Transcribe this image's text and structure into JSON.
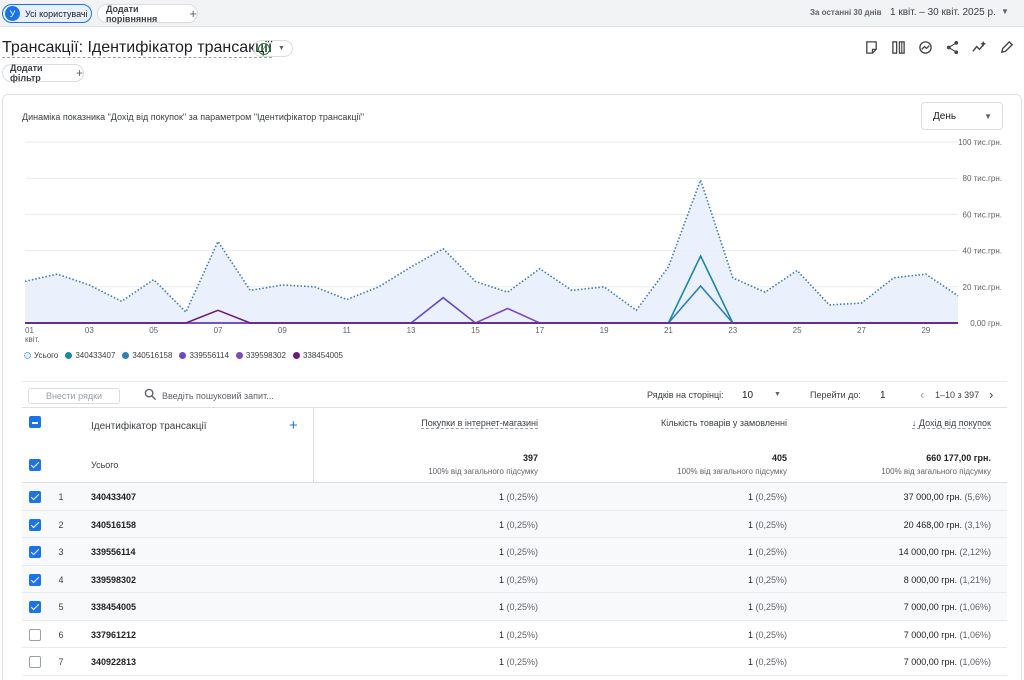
{
  "header": {
    "segment_avatar": "У",
    "segment_label": "Усі користувачі",
    "compare_label": "Додати порівняння",
    "date_hint": "За останні 30 днів",
    "date_range": "1 квіт. – 30 квіт. 2025 р."
  },
  "report": {
    "title": "Трансакції: Ідентифікатор трансакції",
    "filter_label": "Додати фільтр"
  },
  "chart_data": {
    "type": "line",
    "title": "Динаміка показника \"Дохід від покупок\" за параметром \"Ідентифікатор трансакції\"",
    "period": "День",
    "x_ticks": [
      "01",
      "03",
      "05",
      "07",
      "09",
      "11",
      "13",
      "15",
      "17",
      "19",
      "21",
      "23",
      "25",
      "27",
      "29"
    ],
    "x_month_label": "квіт.",
    "y_ticks": [
      "100 тис.грн.",
      "80 тис.грн.",
      "60 тис.грн.",
      "40 тис.грн.",
      "20 тис.грн.",
      "0,00 грн."
    ],
    "ylim": [
      0,
      100000
    ],
    "grid": true,
    "series": [
      {
        "name": "Усього",
        "color": "#1a73e8",
        "style": "dotted-area",
        "values": [
          23000,
          27000,
          21000,
          12000,
          24000,
          6000,
          45000,
          18000,
          21000,
          20000,
          13000,
          20000,
          31000,
          41000,
          23000,
          17000,
          30000,
          18000,
          20000,
          7000,
          31000,
          79000,
          25000,
          17000,
          29000,
          10000,
          11000,
          25000,
          27000,
          15000
        ]
      },
      {
        "name": "340433407",
        "color": "#1a8a9e",
        "style": "line",
        "values": [
          0,
          0,
          0,
          0,
          0,
          0,
          0,
          0,
          0,
          0,
          0,
          0,
          0,
          0,
          0,
          0,
          0,
          0,
          0,
          0,
          0,
          37000,
          0,
          0,
          0,
          0,
          0,
          0,
          0,
          0
        ]
      },
      {
        "name": "340516158",
        "color": "#2b7fbd",
        "style": "line",
        "values": [
          0,
          0,
          0,
          0,
          0,
          0,
          0,
          0,
          0,
          0,
          0,
          0,
          0,
          0,
          0,
          0,
          0,
          0,
          0,
          0,
          0,
          20468,
          0,
          0,
          0,
          0,
          0,
          0,
          0,
          0
        ]
      },
      {
        "name": "339556114",
        "color": "#6b48c8",
        "style": "line",
        "values": [
          0,
          0,
          0,
          0,
          0,
          0,
          0,
          0,
          0,
          0,
          0,
          0,
          0,
          14000,
          0,
          0,
          0,
          0,
          0,
          0,
          0,
          0,
          0,
          0,
          0,
          0,
          0,
          0,
          0,
          0
        ]
      },
      {
        "name": "339598302",
        "color": "#8047b8",
        "style": "line",
        "values": [
          0,
          0,
          0,
          0,
          0,
          0,
          0,
          0,
          0,
          0,
          0,
          0,
          0,
          0,
          0,
          8000,
          0,
          0,
          0,
          0,
          0,
          0,
          0,
          0,
          0,
          0,
          0,
          0,
          0,
          0
        ]
      },
      {
        "name": "338454005",
        "color": "#6a1b7a",
        "style": "line",
        "values": [
          0,
          0,
          0,
          0,
          0,
          0,
          7000,
          0,
          0,
          0,
          0,
          0,
          0,
          0,
          0,
          0,
          0,
          0,
          0,
          0,
          0,
          0,
          0,
          0,
          0,
          0,
          0,
          0,
          0,
          0
        ]
      }
    ]
  },
  "table_controls": {
    "add_rows": "Внести рядки",
    "search_placeholder": "Введіть пошуковий запит...",
    "rows_per_page_label": "Рядків на сторінці:",
    "rows_per_page": "10",
    "goto_label": "Перейти до:",
    "goto_value": "1",
    "pager": "1–10 з 397"
  },
  "table": {
    "dimension_header": "Ідентифікатор трансакції",
    "headers": [
      "Покупки в інтернет-магазині",
      "Кількість товарів у замовленні",
      "↓ Дохід від покупок"
    ],
    "total_label": "Усього",
    "totals": [
      {
        "value": "397",
        "sub": "100% від загального підсумку"
      },
      {
        "value": "405",
        "sub": "100% від загального підсумку"
      },
      {
        "value": "660 177,00 грн.",
        "sub": "100% від загального підсумку"
      }
    ],
    "rows": [
      {
        "idx": "1",
        "id": "340433407",
        "checked": true,
        "c1": "1",
        "p1": " (0,25%)",
        "c2": "1",
        "p2": " (0,25%)",
        "c3": "37 000,00 грн.",
        "p3": " (5,6%)"
      },
      {
        "idx": "2",
        "id": "340516158",
        "checked": true,
        "c1": "1",
        "p1": " (0,25%)",
        "c2": "1",
        "p2": " (0,25%)",
        "c3": "20 468,00 грн.",
        "p3": " (3,1%)"
      },
      {
        "idx": "3",
        "id": "339556114",
        "checked": true,
        "c1": "1",
        "p1": " (0,25%)",
        "c2": "1",
        "p2": " (0,25%)",
        "c3": "14 000,00 грн.",
        "p3": " (2,12%)"
      },
      {
        "idx": "4",
        "id": "339598302",
        "checked": true,
        "c1": "1",
        "p1": " (0,25%)",
        "c2": "1",
        "p2": " (0,25%)",
        "c3": "8 000,00 грн.",
        "p3": " (1,21%)"
      },
      {
        "idx": "5",
        "id": "338454005",
        "checked": true,
        "c1": "1",
        "p1": " (0,25%)",
        "c2": "1",
        "p2": " (0,25%)",
        "c3": "7 000,00 грн.",
        "p3": " (1,06%)"
      },
      {
        "idx": "6",
        "id": "337961212",
        "checked": false,
        "c1": "1",
        "p1": " (0,25%)",
        "c2": "1",
        "p2": " (0,25%)",
        "c3": "7 000,00 грн.",
        "p3": " (1,06%)"
      },
      {
        "idx": "7",
        "id": "340922813",
        "checked": false,
        "c1": "1",
        "p1": " (0,25%)",
        "c2": "1",
        "p2": " (0,25%)",
        "c3": "7 000,00 грн.",
        "p3": " (1,06%)"
      }
    ]
  }
}
